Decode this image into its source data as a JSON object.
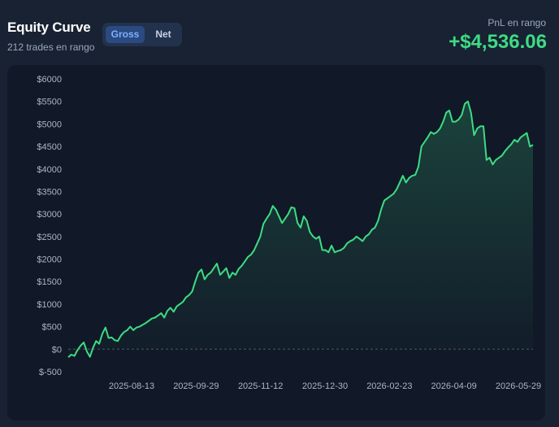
{
  "header": {
    "title": "Equity Curve",
    "subtitle": "212 trades en rango",
    "toggle": {
      "gross_label": "Gross",
      "net_label": "Net",
      "selected": "Gross"
    },
    "pnl_label": "PnL en rango",
    "pnl_value": "+$4,536.06"
  },
  "colors": {
    "background": "#192233",
    "panel": "#111827",
    "line": "#3ddc84",
    "accent": "#2a4a80",
    "zero_line": "#4a566a"
  },
  "chart_data": {
    "type": "area",
    "title": "Equity Curve",
    "xlabel": "",
    "ylabel": "",
    "ylim": [
      -500,
      6000
    ],
    "y_ticks": [
      -500,
      0,
      500,
      1000,
      1500,
      2000,
      2500,
      3000,
      3500,
      4000,
      4500,
      5000,
      5500,
      6000
    ],
    "y_tick_labels": [
      "$-500",
      "$0",
      "$500",
      "$1000",
      "$1500",
      "$2000",
      "$2500",
      "$3000",
      "$3500",
      "$4000",
      "$4500",
      "$5000",
      "$5500",
      "$6000"
    ],
    "x_tick_labels": [
      "2025-08-13",
      "2025-09-29",
      "2025-11-12",
      "2025-12-30",
      "2026-02-23",
      "2026-04-09",
      "2026-05-29"
    ],
    "grid": false,
    "zero_reference_line": true,
    "series": [
      {
        "values": [
          -180,
          -120,
          -150,
          -20,
          80,
          150,
          -50,
          -170,
          30,
          180,
          120,
          340,
          480,
          250,
          260,
          200,
          180,
          300,
          380,
          420,
          500,
          420,
          480,
          500,
          540,
          580,
          630,
          680,
          700,
          750,
          800,
          700,
          850,
          920,
          830,
          950,
          1000,
          1050,
          1150,
          1200,
          1280,
          1500,
          1700,
          1770,
          1550,
          1650,
          1700,
          1800,
          1900,
          1650,
          1720,
          1800,
          1580,
          1700,
          1650,
          1780,
          1850,
          1950,
          2050,
          2100,
          2200,
          2350,
          2500,
          2780,
          2900,
          3000,
          3180,
          3100,
          2950,
          2800,
          2900,
          3000,
          3150,
          3130,
          2800,
          2700,
          2950,
          2850,
          2600,
          2500,
          2450,
          2500,
          2200,
          2200,
          2150,
          2300,
          2150,
          2180,
          2200,
          2250,
          2350,
          2400,
          2430,
          2500,
          2450,
          2400,
          2500,
          2550,
          2650,
          2700,
          2850,
          3100,
          3300,
          3350,
          3400,
          3450,
          3550,
          3700,
          3850,
          3700,
          3800,
          3850,
          3870,
          4050,
          4500,
          4600,
          4700,
          4820,
          4780,
          4820,
          4900,
          5050,
          5250,
          5300,
          5050,
          5050,
          5100,
          5200,
          5450,
          5500,
          5250,
          4750,
          4900,
          4950,
          4950,
          4200,
          4250,
          4100,
          4200,
          4250,
          4300,
          4400,
          4480,
          4550,
          4650,
          4600,
          4700,
          4750,
          4800,
          4500,
          4536
        ]
      }
    ]
  }
}
